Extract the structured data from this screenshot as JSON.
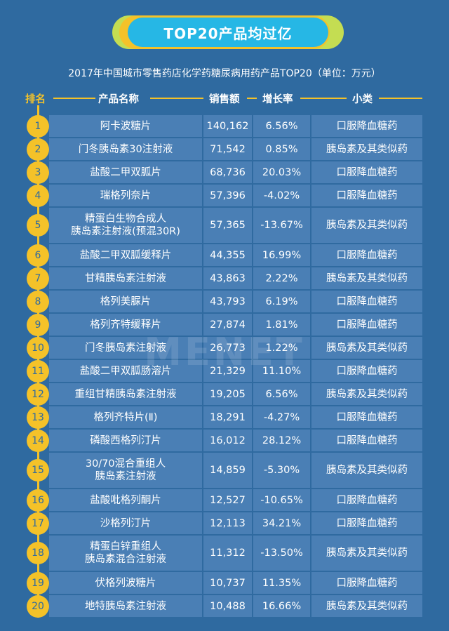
{
  "banner_title": "TOP20产品均过亿",
  "subtitle": "2017年中国城市零售药店化学药糖尿病用药产品TOP20（单位：万元）",
  "headers": {
    "rank": "排名",
    "name": "产品名称",
    "sales": "销售额",
    "growth": "增长率",
    "category": "小类"
  },
  "watermark": "MENET",
  "colors": {
    "background": "#2f6aa0",
    "cell": "#4a7fb5",
    "accent_yellow": "#f4c229",
    "accent_cyan": "#26b7e5",
    "accent_lime": "#c4dd52"
  },
  "rows": [
    {
      "rank": "1",
      "name": "阿卡波糖片",
      "sales": "140,162",
      "growth": "6.56%",
      "category": "口服降血糖药"
    },
    {
      "rank": "2",
      "name": "门冬胰岛素30注射液",
      "sales": "71,542",
      "growth": "0.85%",
      "category": "胰岛素及其类似药"
    },
    {
      "rank": "3",
      "name": "盐酸二甲双胍片",
      "sales": "68,736",
      "growth": "20.03%",
      "category": "口服降血糖药"
    },
    {
      "rank": "4",
      "name": "瑞格列奈片",
      "sales": "57,396",
      "growth": "-4.02%",
      "category": "口服降血糖药"
    },
    {
      "rank": "5",
      "name": "精蛋白生物合成人",
      "name2": "胰岛素注射液(预混30R)",
      "sales": "57,365",
      "growth": "-13.67%",
      "category": "胰岛素及其类似药"
    },
    {
      "rank": "6",
      "name": "盐酸二甲双胍缓释片",
      "sales": "44,355",
      "growth": "16.99%",
      "category": "口服降血糖药"
    },
    {
      "rank": "7",
      "name": "甘精胰岛素注射液",
      "sales": "43,863",
      "growth": "2.22%",
      "category": "胰岛素及其类似药"
    },
    {
      "rank": "8",
      "name": "格列美脲片",
      "sales": "43,793",
      "growth": "6.19%",
      "category": "口服降血糖药"
    },
    {
      "rank": "9",
      "name": "格列齐特缓释片",
      "sales": "27,874",
      "growth": "1.81%",
      "category": "口服降血糖药"
    },
    {
      "rank": "10",
      "name": "门冬胰岛素注射液",
      "sales": "26,773",
      "growth": "1.22%",
      "category": "胰岛素及其类似药"
    },
    {
      "rank": "11",
      "name": "盐酸二甲双胍肠溶片",
      "sales": "21,329",
      "growth": "11.10%",
      "category": "口服降血糖药"
    },
    {
      "rank": "12",
      "name": "重组甘精胰岛素注射液",
      "sales": "19,205",
      "growth": "6.56%",
      "category": "胰岛素及其类似药"
    },
    {
      "rank": "13",
      "name": "格列齐特片(Ⅱ)",
      "sales": "18,291",
      "growth": "-4.27%",
      "category": "口服降血糖药"
    },
    {
      "rank": "14",
      "name": "磷酸西格列汀片",
      "sales": "16,012",
      "growth": "28.12%",
      "category": "口服降血糖药"
    },
    {
      "rank": "15",
      "name": "30/70混合重组人",
      "name2": "胰岛素注射液",
      "sales": "14,859",
      "growth": "-5.30%",
      "category": "胰岛素及其类似药"
    },
    {
      "rank": "16",
      "name": "盐酸吡格列酮片",
      "sales": "12,527",
      "growth": "-10.65%",
      "category": "口服降血糖药"
    },
    {
      "rank": "17",
      "name": "沙格列汀片",
      "sales": "12,113",
      "growth": "34.21%",
      "category": "口服降血糖药"
    },
    {
      "rank": "18",
      "name": "精蛋白锌重组人",
      "name2": "胰岛素混合注射液",
      "sales": "11,312",
      "growth": "-13.50%",
      "category": "胰岛素及其类似药"
    },
    {
      "rank": "19",
      "name": "伏格列波糖片",
      "sales": "10,737",
      "growth": "11.35%",
      "category": "口服降血糖药"
    },
    {
      "rank": "20",
      "name": "地特胰岛素注射液",
      "sales": "10,488",
      "growth": "16.66%",
      "category": "胰岛素及其类似药"
    }
  ]
}
